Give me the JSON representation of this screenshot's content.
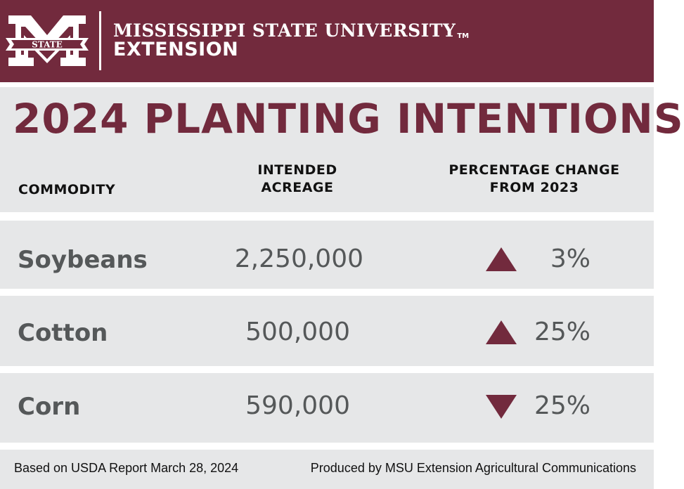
{
  "header": {
    "university": "MISSISSIPPI STATE UNIVERSITY",
    "trademark": "TM",
    "unit": "EXTENSION",
    "logo_text": "STATE",
    "logo_icon": "msu-m-state-logo-icon",
    "background_color": "#722a3d"
  },
  "title": "2024 PLANTING INTENTIONS",
  "colors": {
    "accent": "#722a3d",
    "band": "#e6e7e8",
    "body_text": "#555859",
    "header_text": "#111111"
  },
  "chart_data": {
    "type": "table",
    "title": "2024 PLANTING INTENTIONS",
    "columns": [
      "COMMODITY",
      "INTENDED ACREAGE",
      "PERCENTAGE CHANGE FROM 2023"
    ],
    "column_lines": {
      "commodity": [
        "COMMODITY"
      ],
      "acreage": [
        "INTENDED",
        "ACREAGE"
      ],
      "change": [
        "PERCENTAGE CHANGE",
        "FROM 2023"
      ]
    },
    "rows": [
      {
        "commodity": "Soybeans",
        "acreage": "2,250,000",
        "acreage_value": 2250000,
        "direction": "up",
        "change": "3%",
        "change_value": 3
      },
      {
        "commodity": "Cotton",
        "acreage": "500,000",
        "acreage_value": 500000,
        "direction": "up",
        "change": "25%",
        "change_value": 25
      },
      {
        "commodity": "Corn",
        "acreage": "590,000",
        "acreage_value": 590000,
        "direction": "down",
        "change": "25%",
        "change_value": -25
      }
    ]
  },
  "footer": {
    "source": "Based on USDA Report March 28, 2024",
    "credit": "Produced by MSU Extension Agricultural Communications"
  }
}
